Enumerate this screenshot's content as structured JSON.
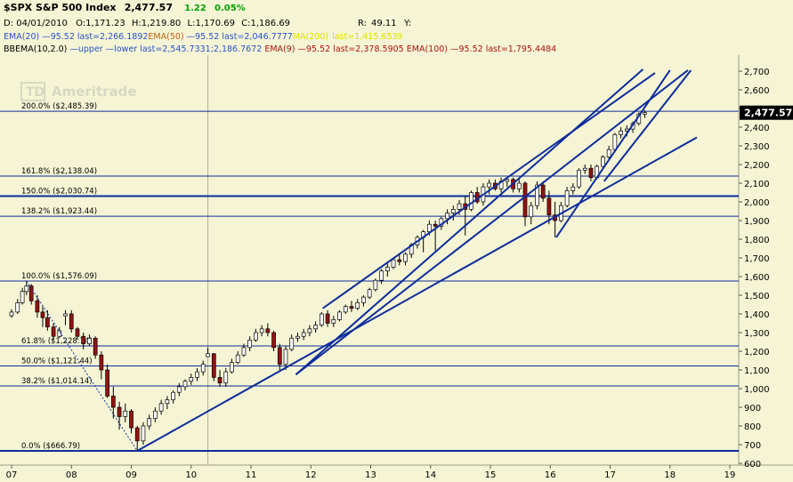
{
  "header": {
    "symbol": "$SPX S&P 500 Index",
    "last": "2,477.57",
    "change": "1.22",
    "change_pct": "0.05%",
    "date_label": "D: 04/01/2010",
    "o_label": "O:",
    "o": "1,171.23",
    "h_label": "H:",
    "h": "1,219.80",
    "l_label": "L:",
    "l": "1,170.69",
    "c_label": "C:",
    "c": "1,186.69",
    "r_label": "R:",
    "r": "49.11",
    "y_label": "Y:",
    "ema20": "EMA(20)",
    "ema20_vals": "—95.52 last=2,266.1892",
    "ema50": "EMA(50)",
    "ema50_vals": "—95.52 last=2,046.7777",
    "ma200": "MA(200)",
    "ma200_vals": "last=1,415.6539",
    "bbema": "BBEMA(10,2.0)",
    "bbema_vals": "—upper —lower last=2,545.7331;2,186.7672",
    "ema9": "EMA(9)",
    "ema9_vals": "—95.52 last=2,378.5905",
    "ema100": "EMA(100)",
    "ema100_vals": "—95.52 last=1,795.4484"
  },
  "watermark": "Ameritrade",
  "colors": {
    "background": "#f5f5d5",
    "line_blue": "#0d2c9c",
    "up_candle": "#ffffff",
    "down_candle": "#9a1010",
    "positive": "#00a000",
    "price_box": "#000000"
  },
  "chart_data": {
    "type": "candlestick",
    "title": "$SPX S&P 500 Index",
    "x_axis": {
      "tick_labels": [
        "07",
        "08",
        "09",
        "10",
        "11",
        "12",
        "13",
        "14",
        "15",
        "16",
        "17",
        "18",
        "19"
      ]
    },
    "y_axis": {
      "range": [
        600,
        2750
      ],
      "tick_labels": [
        "600",
        "700",
        "800",
        "900",
        "1,000",
        "1,100",
        "1,200",
        "1,300",
        "1,400",
        "1,500",
        "1,600",
        "1,700",
        "1,800",
        "1,900",
        "2,000",
        "2,100",
        "2,200",
        "2,300",
        "2,400",
        "2,500",
        "2,600",
        "2,700"
      ],
      "tick_values": [
        600,
        700,
        800,
        900,
        1000,
        1100,
        1200,
        1300,
        1400,
        1500,
        1600,
        1700,
        1800,
        1900,
        2000,
        2100,
        2200,
        2300,
        2400,
        2500,
        2600,
        2700
      ]
    },
    "last_price_label": "2,477.57",
    "last_price_value": 2477.57,
    "fib_levels": [
      {
        "label": "200.0% ($2,485.39)",
        "value": 2485.39
      },
      {
        "label": "161.8% ($2,138.04)",
        "value": 2138.04
      },
      {
        "label": "150.0% ($2,030.74)",
        "value": 2030.74
      },
      {
        "label": "138.2% ($1,923.44)",
        "value": 1923.44
      },
      {
        "label": "100.0% ($1,576.09)",
        "value": 1576.09
      },
      {
        "label": "61.8% ($1,228.74)",
        "value": 1228.74
      },
      {
        "label": "50.0% ($1,121.44)",
        "value": 1121.44
      },
      {
        "label": "38.2% ($1,014.14)",
        "value": 1014.14
      },
      {
        "label": "0.0% ($666.79)",
        "value": 666.79
      }
    ],
    "trendlines": [
      {
        "x": [
          9.1,
          18.45
        ],
        "y": [
          666.79,
          2345
        ]
      },
      {
        "x": [
          11.75,
          17.55
        ],
        "y": [
          1075,
          2710
        ]
      },
      {
        "x": [
          12.2,
          17.75
        ],
        "y": [
          1430,
          2690
        ]
      },
      {
        "x": [
          11.75,
          18.3
        ],
        "y": [
          1075,
          2705
        ]
      },
      {
        "x": [
          16.1,
          18.0
        ],
        "y": [
          1810,
          2705
        ]
      },
      {
        "x": [
          16.9,
          18.35
        ],
        "y": [
          2110,
          2705
        ]
      }
    ],
    "dashed_line": {
      "x": [
        7.25,
        9.1
      ],
      "y": [
        1576.09,
        666.79
      ]
    },
    "vertical_marker_x": 10.28,
    "candles": [
      [
        7.0,
        1390,
        1425,
        1380,
        1410
      ],
      [
        7.1,
        1410,
        1480,
        1400,
        1460
      ],
      [
        7.18,
        1460,
        1540,
        1450,
        1520
      ],
      [
        7.25,
        1520,
        1576,
        1500,
        1550
      ],
      [
        7.33,
        1550,
        1560,
        1450,
        1470
      ],
      [
        7.43,
        1470,
        1500,
        1380,
        1410
      ],
      [
        7.52,
        1410,
        1440,
        1330,
        1380
      ],
      [
        7.6,
        1380,
        1420,
        1310,
        1330
      ],
      [
        7.7,
        1330,
        1350,
        1260,
        1280
      ],
      [
        7.8,
        1280,
        1330,
        1270,
        1310
      ],
      [
        7.9,
        1390,
        1420,
        1340,
        1400
      ],
      [
        8.0,
        1400,
        1420,
        1300,
        1320
      ],
      [
        8.1,
        1320,
        1330,
        1260,
        1280
      ],
      [
        8.2,
        1280,
        1300,
        1210,
        1240
      ],
      [
        8.3,
        1240,
        1290,
        1230,
        1270
      ],
      [
        8.4,
        1270,
        1280,
        1160,
        1180
      ],
      [
        8.5,
        1180,
        1200,
        1050,
        1100
      ],
      [
        8.6,
        1100,
        1130,
        950,
        960
      ],
      [
        8.7,
        960,
        1010,
        840,
        900
      ],
      [
        8.8,
        900,
        930,
        780,
        850
      ],
      [
        8.9,
        850,
        920,
        820,
        880
      ],
      [
        9.0,
        880,
        890,
        760,
        790
      ],
      [
        9.1,
        790,
        800,
        670,
        720
      ],
      [
        9.2,
        720,
        820,
        700,
        800
      ],
      [
        9.3,
        800,
        860,
        780,
        840
      ],
      [
        9.4,
        840,
        900,
        820,
        880
      ],
      [
        9.5,
        880,
        940,
        860,
        920
      ],
      [
        9.6,
        920,
        960,
        890,
        940
      ],
      [
        9.7,
        940,
        990,
        920,
        980
      ],
      [
        9.8,
        980,
        1030,
        960,
        1010
      ],
      [
        9.9,
        1010,
        1050,
        990,
        1040
      ],
      [
        10.0,
        1040,
        1080,
        1020,
        1060
      ],
      [
        10.1,
        1060,
        1110,
        1040,
        1090
      ],
      [
        10.2,
        1090,
        1150,
        1070,
        1130
      ],
      [
        10.28,
        1171,
        1220,
        1170,
        1187
      ],
      [
        10.38,
        1187,
        1190,
        1040,
        1060
      ],
      [
        10.48,
        1060,
        1100,
        1010,
        1030
      ],
      [
        10.58,
        1030,
        1110,
        1010,
        1090
      ],
      [
        10.68,
        1090,
        1160,
        1080,
        1140
      ],
      [
        10.78,
        1140,
        1200,
        1130,
        1180
      ],
      [
        10.88,
        1180,
        1240,
        1170,
        1220
      ],
      [
        10.98,
        1220,
        1280,
        1200,
        1260
      ],
      [
        11.08,
        1260,
        1320,
        1250,
        1300
      ],
      [
        11.18,
        1300,
        1340,
        1280,
        1320
      ],
      [
        11.28,
        1320,
        1350,
        1280,
        1300
      ],
      [
        11.38,
        1300,
        1310,
        1200,
        1220
      ],
      [
        11.48,
        1220,
        1240,
        1100,
        1130
      ],
      [
        11.58,
        1130,
        1230,
        1100,
        1210
      ],
      [
        11.68,
        1210,
        1290,
        1200,
        1270
      ],
      [
        11.78,
        1270,
        1300,
        1250,
        1280
      ],
      [
        11.88,
        1280,
        1320,
        1260,
        1300
      ],
      [
        11.98,
        1300,
        1340,
        1280,
        1320
      ],
      [
        12.08,
        1320,
        1360,
        1300,
        1340
      ],
      [
        12.18,
        1340,
        1410,
        1330,
        1400
      ],
      [
        12.28,
        1400,
        1420,
        1330,
        1350
      ],
      [
        12.38,
        1350,
        1390,
        1330,
        1370
      ],
      [
        12.48,
        1370,
        1420,
        1360,
        1410
      ],
      [
        12.58,
        1410,
        1450,
        1400,
        1440
      ],
      [
        12.68,
        1440,
        1470,
        1410,
        1430
      ],
      [
        12.78,
        1430,
        1480,
        1420,
        1460
      ],
      [
        12.88,
        1460,
        1500,
        1440,
        1490
      ],
      [
        12.98,
        1490,
        1540,
        1480,
        1530
      ],
      [
        13.08,
        1530,
        1590,
        1520,
        1580
      ],
      [
        13.18,
        1580,
        1640,
        1560,
        1630
      ],
      [
        13.28,
        1630,
        1670,
        1600,
        1650
      ],
      [
        13.38,
        1650,
        1700,
        1640,
        1690
      ],
      [
        13.48,
        1690,
        1720,
        1660,
        1680
      ],
      [
        13.58,
        1680,
        1730,
        1660,
        1720
      ],
      [
        13.68,
        1720,
        1780,
        1700,
        1770
      ],
      [
        13.78,
        1770,
        1820,
        1750,
        1810
      ],
      [
        13.88,
        1810,
        1850,
        1730,
        1840
      ],
      [
        13.98,
        1840,
        1900,
        1820,
        1880
      ],
      [
        14.08,
        1880,
        1900,
        1740,
        1870
      ],
      [
        14.18,
        1870,
        1920,
        1850,
        1910
      ],
      [
        14.28,
        1910,
        1960,
        1880,
        1940
      ],
      [
        14.38,
        1940,
        1980,
        1900,
        1960
      ],
      [
        14.48,
        1960,
        2010,
        1930,
        1990
      ],
      [
        14.58,
        1990,
        2030,
        1820,
        1960
      ],
      [
        14.68,
        1960,
        2060,
        1950,
        2050
      ],
      [
        14.78,
        2050,
        2080,
        1990,
        2000
      ],
      [
        14.88,
        2000,
        2100,
        1980,
        2080
      ],
      [
        14.98,
        2080,
        2120,
        2040,
        2100
      ],
      [
        15.08,
        2100,
        2120,
        2060,
        2070
      ],
      [
        15.18,
        2070,
        2130,
        2050,
        2110
      ],
      [
        15.28,
        2110,
        2130,
        2080,
        2120
      ],
      [
        15.38,
        2120,
        2130,
        2050,
        2070
      ],
      [
        15.48,
        2070,
        2120,
        2050,
        2100
      ],
      [
        15.58,
        2100,
        2110,
        1870,
        1920
      ],
      [
        15.68,
        1920,
        2000,
        1880,
        1980
      ],
      [
        15.78,
        1980,
        2110,
        1960,
        2090
      ],
      [
        15.88,
        2090,
        2110,
        2000,
        2020
      ],
      [
        15.98,
        2020,
        2060,
        1880,
        1930
      ],
      [
        16.08,
        1930,
        2000,
        1810,
        1900
      ],
      [
        16.18,
        1900,
        2000,
        1890,
        1980
      ],
      [
        16.28,
        1980,
        2080,
        1970,
        2060
      ],
      [
        16.38,
        2060,
        2100,
        2040,
        2080
      ],
      [
        16.48,
        2080,
        2180,
        2070,
        2170
      ],
      [
        16.58,
        2170,
        2200,
        2150,
        2180
      ],
      [
        16.68,
        2180,
        2200,
        2110,
        2130
      ],
      [
        16.78,
        2130,
        2200,
        2120,
        2190
      ],
      [
        16.88,
        2190,
        2250,
        2180,
        2240
      ],
      [
        16.98,
        2240,
        2300,
        2230,
        2280
      ],
      [
        17.08,
        2280,
        2370,
        2270,
        2360
      ],
      [
        17.18,
        2360,
        2400,
        2340,
        2380
      ],
      [
        17.28,
        2380,
        2410,
        2350,
        2390
      ],
      [
        17.38,
        2390,
        2430,
        2370,
        2420
      ],
      [
        17.48,
        2420,
        2480,
        2410,
        2470
      ],
      [
        17.58,
        2470,
        2490,
        2450,
        2478
      ]
    ]
  }
}
